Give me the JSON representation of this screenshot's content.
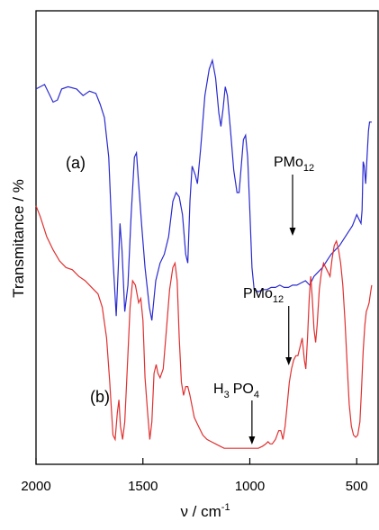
{
  "chart_data": {
    "type": "line",
    "xlabel": "ν / cm",
    "xlabel_sup": "-1",
    "ylabel": "Transmitance / %",
    "xlim": [
      2000,
      400
    ],
    "x_reversed": true,
    "x_ticks": [
      2000,
      1500,
      1000,
      500
    ],
    "x_tick_labels": [
      "2000",
      "1500",
      "1000",
      "500"
    ],
    "y_ticks_shown": false,
    "grid": false,
    "legend": "none",
    "series": [
      {
        "color": "#2a2ad0",
        "label": "(a)",
        "points": [
          [
            2000,
            0.835
          ],
          [
            1960,
            0.845
          ],
          [
            1920,
            0.805
          ],
          [
            1900,
            0.81
          ],
          [
            1880,
            0.835
          ],
          [
            1850,
            0.84
          ],
          [
            1810,
            0.835
          ],
          [
            1780,
            0.82
          ],
          [
            1750,
            0.83
          ],
          [
            1720,
            0.825
          ],
          [
            1700,
            0.8
          ],
          [
            1680,
            0.77
          ],
          [
            1660,
            0.68
          ],
          [
            1640,
            0.45
          ],
          [
            1625,
            0.32
          ],
          [
            1615,
            0.43
          ],
          [
            1607,
            0.53
          ],
          [
            1598,
            0.47
          ],
          [
            1585,
            0.33
          ],
          [
            1570,
            0.39
          ],
          [
            1555,
            0.55
          ],
          [
            1540,
            0.68
          ],
          [
            1530,
            0.69
          ],
          [
            1520,
            0.62
          ],
          [
            1505,
            0.52
          ],
          [
            1490,
            0.43
          ],
          [
            1470,
            0.34
          ],
          [
            1458,
            0.31
          ],
          [
            1440,
            0.4
          ],
          [
            1420,
            0.44
          ],
          [
            1400,
            0.46
          ],
          [
            1380,
            0.5
          ],
          [
            1360,
            0.58
          ],
          [
            1345,
            0.6
          ],
          [
            1330,
            0.59
          ],
          [
            1315,
            0.55
          ],
          [
            1300,
            0.46
          ],
          [
            1290,
            0.44
          ],
          [
            1280,
            0.58
          ],
          [
            1270,
            0.66
          ],
          [
            1255,
            0.64
          ],
          [
            1245,
            0.62
          ],
          [
            1230,
            0.7
          ],
          [
            1210,
            0.82
          ],
          [
            1190,
            0.88
          ],
          [
            1175,
            0.9
          ],
          [
            1160,
            0.86
          ],
          [
            1145,
            0.78
          ],
          [
            1135,
            0.75
          ],
          [
            1125,
            0.79
          ],
          [
            1115,
            0.84
          ],
          [
            1105,
            0.82
          ],
          [
            1090,
            0.74
          ],
          [
            1075,
            0.65
          ],
          [
            1060,
            0.6
          ],
          [
            1050,
            0.6
          ],
          [
            1040,
            0.66
          ],
          [
            1030,
            0.72
          ],
          [
            1020,
            0.73
          ],
          [
            1010,
            0.68
          ],
          [
            1000,
            0.56
          ],
          [
            990,
            0.43
          ],
          [
            980,
            0.38
          ],
          [
            960,
            0.375
          ],
          [
            940,
            0.38
          ],
          [
            920,
            0.38
          ],
          [
            900,
            0.385
          ],
          [
            880,
            0.385
          ],
          [
            860,
            0.39
          ],
          [
            840,
            0.385
          ],
          [
            820,
            0.385
          ],
          [
            800,
            0.39
          ],
          [
            780,
            0.39
          ],
          [
            760,
            0.395
          ],
          [
            740,
            0.4
          ],
          [
            720,
            0.39
          ],
          [
            700,
            0.41
          ],
          [
            680,
            0.42
          ],
          [
            660,
            0.43
          ],
          [
            640,
            0.445
          ],
          [
            620,
            0.46
          ],
          [
            600,
            0.47
          ],
          [
            580,
            0.48
          ],
          [
            560,
            0.495
          ],
          [
            540,
            0.51
          ],
          [
            520,
            0.525
          ],
          [
            500,
            0.55
          ],
          [
            490,
            0.54
          ],
          [
            480,
            0.53
          ],
          [
            475,
            0.56
          ],
          [
            470,
            0.67
          ],
          [
            465,
            0.66
          ],
          [
            458,
            0.62
          ],
          [
            452,
            0.68
          ],
          [
            445,
            0.74
          ],
          [
            440,
            0.76
          ],
          [
            430,
            0.76
          ]
        ]
      },
      {
        "color": "#e03030",
        "label": "(b)",
        "points": [
          [
            2000,
            0.57
          ],
          [
            1980,
            0.545
          ],
          [
            1950,
            0.5
          ],
          [
            1920,
            0.47
          ],
          [
            1890,
            0.445
          ],
          [
            1860,
            0.43
          ],
          [
            1830,
            0.425
          ],
          [
            1800,
            0.41
          ],
          [
            1770,
            0.4
          ],
          [
            1740,
            0.385
          ],
          [
            1710,
            0.37
          ],
          [
            1690,
            0.34
          ],
          [
            1670,
            0.27
          ],
          [
            1655,
            0.17
          ],
          [
            1640,
            0.05
          ],
          [
            1630,
            0.04
          ],
          [
            1620,
            0.1
          ],
          [
            1612,
            0.13
          ],
          [
            1605,
            0.07
          ],
          [
            1595,
            0.04
          ],
          [
            1585,
            0.08
          ],
          [
            1575,
            0.18
          ],
          [
            1560,
            0.34
          ],
          [
            1548,
            0.4
          ],
          [
            1535,
            0.39
          ],
          [
            1520,
            0.35
          ],
          [
            1510,
            0.36
          ],
          [
            1500,
            0.31
          ],
          [
            1490,
            0.18
          ],
          [
            1478,
            0.1
          ],
          [
            1468,
            0.04
          ],
          [
            1458,
            0.08
          ],
          [
            1448,
            0.19
          ],
          [
            1438,
            0.21
          ],
          [
            1430,
            0.19
          ],
          [
            1420,
            0.18
          ],
          [
            1405,
            0.2
          ],
          [
            1390,
            0.29
          ],
          [
            1375,
            0.38
          ],
          [
            1360,
            0.43
          ],
          [
            1350,
            0.44
          ],
          [
            1340,
            0.4
          ],
          [
            1330,
            0.27
          ],
          [
            1320,
            0.17
          ],
          [
            1310,
            0.14
          ],
          [
            1300,
            0.16
          ],
          [
            1290,
            0.16
          ],
          [
            1280,
            0.14
          ],
          [
            1260,
            0.09
          ],
          [
            1240,
            0.07
          ],
          [
            1220,
            0.05
          ],
          [
            1200,
            0.04
          ],
          [
            1180,
            0.035
          ],
          [
            1160,
            0.03
          ],
          [
            1140,
            0.025
          ],
          [
            1120,
            0.02
          ],
          [
            1100,
            0.02
          ],
          [
            1080,
            0.02
          ],
          [
            1060,
            0.02
          ],
          [
            1040,
            0.02
          ],
          [
            1020,
            0.02
          ],
          [
            1000,
            0.02
          ],
          [
            980,
            0.02
          ],
          [
            960,
            0.02
          ],
          [
            940,
            0.025
          ],
          [
            925,
            0.03
          ],
          [
            915,
            0.035
          ],
          [
            905,
            0.03
          ],
          [
            895,
            0.03
          ],
          [
            880,
            0.04
          ],
          [
            865,
            0.06
          ],
          [
            855,
            0.06
          ],
          [
            845,
            0.04
          ],
          [
            835,
            0.07
          ],
          [
            825,
            0.12
          ],
          [
            815,
            0.17
          ],
          [
            805,
            0.2
          ],
          [
            795,
            0.22
          ],
          [
            785,
            0.23
          ],
          [
            775,
            0.23
          ],
          [
            765,
            0.25
          ],
          [
            755,
            0.27
          ],
          [
            745,
            0.22
          ],
          [
            738,
            0.2
          ],
          [
            730,
            0.27
          ],
          [
            722,
            0.36
          ],
          [
            715,
            0.41
          ],
          [
            708,
            0.36
          ],
          [
            700,
            0.29
          ],
          [
            692,
            0.26
          ],
          [
            685,
            0.3
          ],
          [
            675,
            0.38
          ],
          [
            665,
            0.42
          ],
          [
            655,
            0.44
          ],
          [
            645,
            0.43
          ],
          [
            635,
            0.42
          ],
          [
            625,
            0.41
          ],
          [
            615,
            0.45
          ],
          [
            605,
            0.48
          ],
          [
            595,
            0.49
          ],
          [
            585,
            0.47
          ],
          [
            575,
            0.44
          ],
          [
            565,
            0.39
          ],
          [
            555,
            0.31
          ],
          [
            545,
            0.21
          ],
          [
            535,
            0.12
          ],
          [
            525,
            0.07
          ],
          [
            515,
            0.05
          ],
          [
            505,
            0.045
          ],
          [
            495,
            0.05
          ],
          [
            485,
            0.08
          ],
          [
            478,
            0.15
          ],
          [
            470,
            0.24
          ],
          [
            462,
            0.3
          ],
          [
            455,
            0.33
          ],
          [
            448,
            0.34
          ],
          [
            442,
            0.35
          ],
          [
            436,
            0.37
          ],
          [
            430,
            0.39
          ]
        ]
      }
    ],
    "annotations": [
      {
        "kind": "text",
        "text": "(a)"
      },
      {
        "kind": "text",
        "text": "(b)"
      },
      {
        "kind": "formula",
        "base": "PMo",
        "sub": "12",
        "target_x": 800
      },
      {
        "kind": "formula",
        "base": "PMo",
        "sub": "12",
        "target_x": 818
      },
      {
        "kind": "formula",
        "parts": [
          [
            "H",
            "3"
          ],
          [
            "PO",
            "4"
          ]
        ],
        "target_x": 990
      }
    ]
  }
}
